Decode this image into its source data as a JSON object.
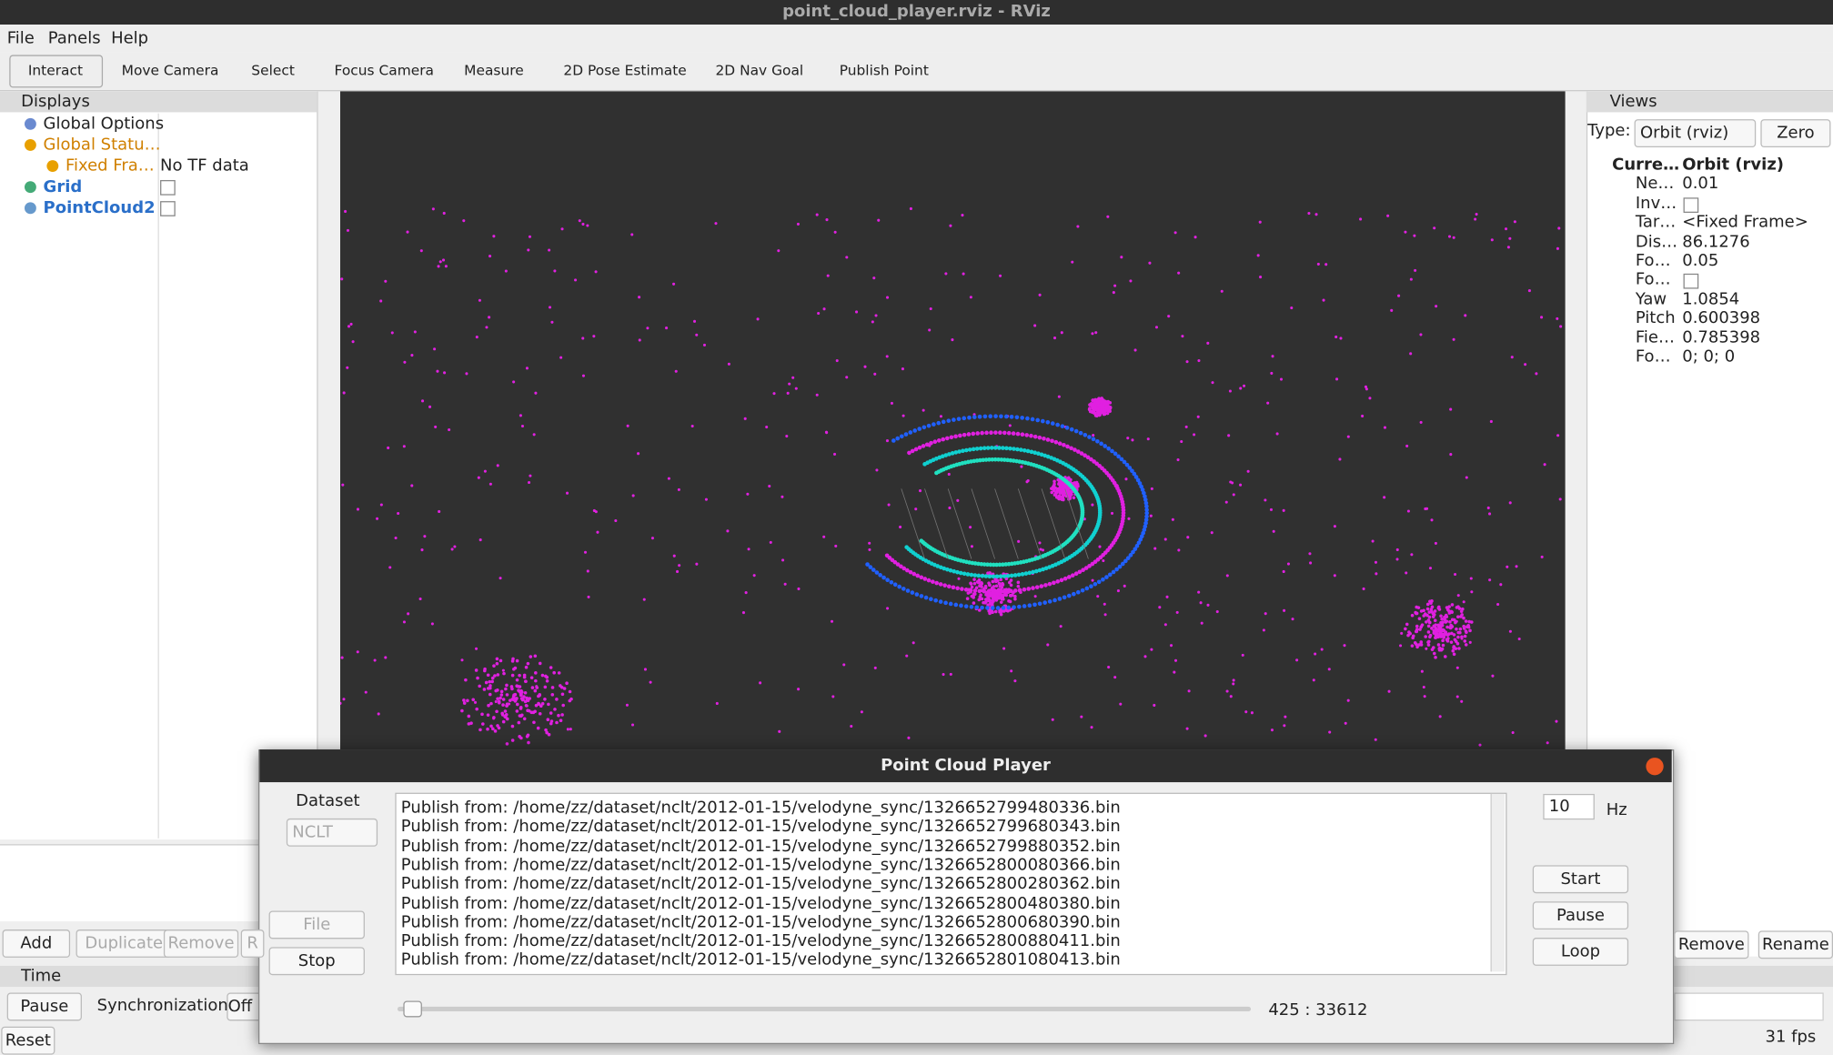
{
  "window": {
    "title": "point_cloud_player.rviz - RViz"
  },
  "menu": [
    "File",
    "Panels",
    "Help"
  ],
  "toolbar": [
    "Interact",
    "Move Camera",
    "Select",
    "Focus Camera",
    "Measure",
    "2D Pose Estimate",
    "2D Nav Goal",
    "Publish Point"
  ],
  "displays": {
    "title": "Displays",
    "items": [
      {
        "label": "Global Options"
      },
      {
        "label": "Global Statu…"
      },
      {
        "label": "Fixed Fra…",
        "value": "No TF data"
      },
      {
        "label": "Grid"
      },
      {
        "label": "PointCloud2"
      }
    ],
    "buttons": [
      "Add",
      "Duplicate",
      "Remove",
      "R"
    ]
  },
  "views": {
    "title": "Views",
    "type_label": "Type:",
    "type_value": "Orbit (rviz)",
    "zero": "Zero",
    "rows": [
      {
        "label": "Curre…",
        "value": "Orbit (rviz)"
      },
      {
        "label": "Ne…",
        "value": "0.01"
      },
      {
        "label": "Inv…"
      },
      {
        "label": "Tar…",
        "value": "<Fixed Frame>"
      },
      {
        "label": "Dis…",
        "value": "86.1276"
      },
      {
        "label": "Fo…",
        "value": "0.05"
      },
      {
        "label": "Fo…"
      },
      {
        "label": "Yaw",
        "value": "1.0854"
      },
      {
        "label": "Pitch",
        "value": "0.600398"
      },
      {
        "label": "Fie…",
        "value": "0.785398"
      },
      {
        "label": "Fo…",
        "value": "0; 0; 0"
      }
    ],
    "buttons": [
      "Remove",
      "Rename"
    ]
  },
  "time": {
    "title": "Time",
    "pause": "Pause",
    "sync_label": "Synchronization:",
    "sync_value": "Off",
    "reset": "Reset",
    "fps": "31 fps"
  },
  "player": {
    "title": "Point Cloud Player",
    "dataset_label": "Dataset",
    "dataset_value": "NCLT",
    "buttons": [
      "File",
      "Stop"
    ],
    "log": [
      "Publish from: /home/zz/dataset/nclt/2012-01-15/velodyne_sync/1326652799480336.bin",
      "Publish from: /home/zz/dataset/nclt/2012-01-15/velodyne_sync/1326652799680343.bin",
      "Publish from: /home/zz/dataset/nclt/2012-01-15/velodyne_sync/1326652799880352.bin",
      "Publish from: /home/zz/dataset/nclt/2012-01-15/velodyne_sync/1326652800080366.bin",
      "Publish from: /home/zz/dataset/nclt/2012-01-15/velodyne_sync/1326652800280362.bin",
      "Publish from: /home/zz/dataset/nclt/2012-01-15/velodyne_sync/1326652800480380.bin",
      "Publish from: /home/zz/dataset/nclt/2012-01-15/velodyne_sync/1326652800680390.bin",
      "Publish from: /home/zz/dataset/nclt/2012-01-15/velodyne_sync/1326652800880411.bin",
      "Publish from: /home/zz/dataset/nclt/2012-01-15/velodyne_sync/1326652801080413.bin"
    ],
    "rate": "10",
    "rate_unit": "Hz",
    "controls": [
      "Start",
      "Pause",
      "Loop"
    ],
    "progress": "425 : 33612"
  }
}
